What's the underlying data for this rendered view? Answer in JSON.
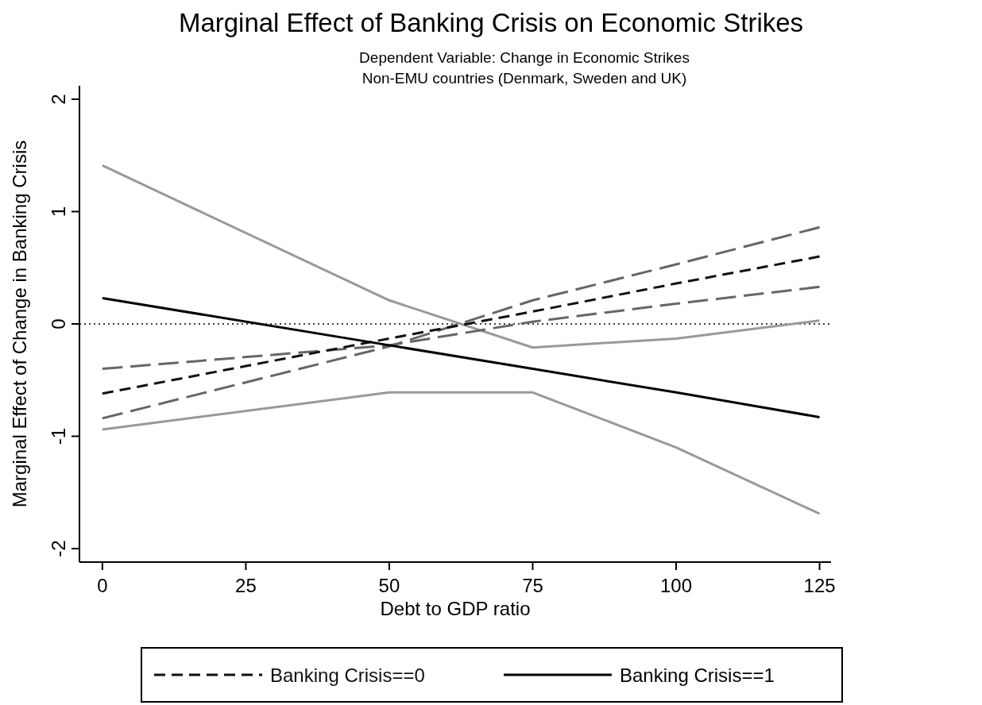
{
  "chart_data": {
    "type": "line",
    "title": "Marginal Effect of Banking Crisis on Economic Strikes",
    "subtitle": "Dependent Variable: Change in Economic Strikes\nNon-EMU countries (Denmark, Sweden and UK)",
    "xlabel": "Debt to GDP ratio",
    "ylabel": "Marginal Effect of Change in Banking Crisis",
    "x": [
      0,
      50,
      75,
      100,
      125
    ],
    "series": [
      {
        "color": "#999999",
        "line_style": "solid",
        "values": [
          1.41,
          0.21,
          -0.21,
          -0.13,
          0.03
        ]
      },
      {
        "color": "#999999",
        "line_style": "solid",
        "values": [
          -0.94,
          -0.61,
          -0.61,
          -1.1,
          -1.69
        ]
      },
      {
        "color": "#666666",
        "line_style": "dashed",
        "values": [
          -0.4,
          -0.19,
          0.02,
          0.18,
          0.33
        ]
      },
      {
        "color": "#666666",
        "line_style": "dashed",
        "values": [
          -0.84,
          -0.2,
          0.21,
          0.53,
          0.86
        ]
      },
      {
        "name": "Banking Crisis==0",
        "color": "#111111",
        "line_style": "dashed",
        "values": [
          -0.62,
          -0.13,
          0.11,
          0.36,
          0.6
        ]
      },
      {
        "name": "Banking Crisis==1",
        "color": "#000000",
        "line_style": "solid",
        "values": [
          0.23,
          -0.19,
          -0.4,
          -0.61,
          -0.83
        ]
      }
    ],
    "xlim": [
      -4,
      127
    ],
    "xticks": [
      0,
      25,
      50,
      75,
      100,
      125
    ],
    "ylim": [
      -2.12,
      2.12
    ],
    "yticks": [
      {
        "value": -2,
        "label": "-2"
      },
      {
        "value": -1,
        "label": "-1"
      },
      0,
      1,
      2
    ],
    "ref_lines": [
      {
        "axis": "y",
        "value": 0,
        "line_style": "dotted",
        "color": "#000000"
      }
    ],
    "grid": false,
    "legend": "bottom"
  }
}
